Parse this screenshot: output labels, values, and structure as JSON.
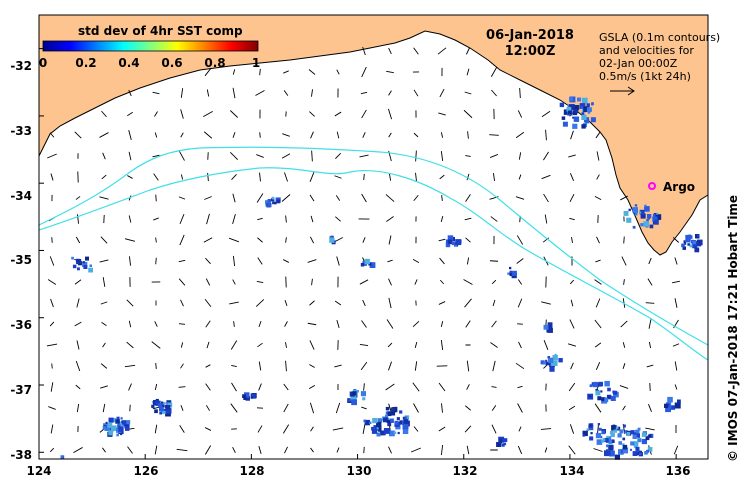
{
  "title": {
    "date": "06-Jan-2018",
    "time": "12:00Z"
  },
  "colorbar": {
    "title": "std dev of 4hr SST comp",
    "ticks": [
      "0",
      "0.2",
      "0.4",
      "0.6",
      "0.8",
      "1"
    ],
    "colors": [
      "#00008f",
      "#0000ff",
      "#0080ff",
      "#00ffff",
      "#80ff80",
      "#ffff00",
      "#ff8000",
      "#ff0000",
      "#800000"
    ]
  },
  "legend": {
    "line1": "GSLA (0.1m contours)",
    "line2": "and velocities for",
    "line3": "02-Jan 00:00Z",
    "line4": "0.5m/s (1kt 24h)"
  },
  "argo": {
    "label": "Argo",
    "lon": 135.5,
    "lat": -33.85,
    "color": "#ff00ff"
  },
  "axes": {
    "lon_range": [
      124,
      136.6
    ],
    "lat_range": [
      -38.1,
      -31.5
    ],
    "x_ticks": [
      "124",
      "126",
      "128",
      "130",
      "132",
      "134",
      "136"
    ],
    "y_ticks": [
      "-32",
      "-33",
      "-34",
      "-35",
      "-36",
      "-37",
      "-38"
    ]
  },
  "credit": "© IMOS 07-Jan-2018 17:21 Hobart Time",
  "colors": {
    "land": "#fdc48f",
    "contour": "#40e0e8",
    "cloud": "#2050d0"
  }
}
